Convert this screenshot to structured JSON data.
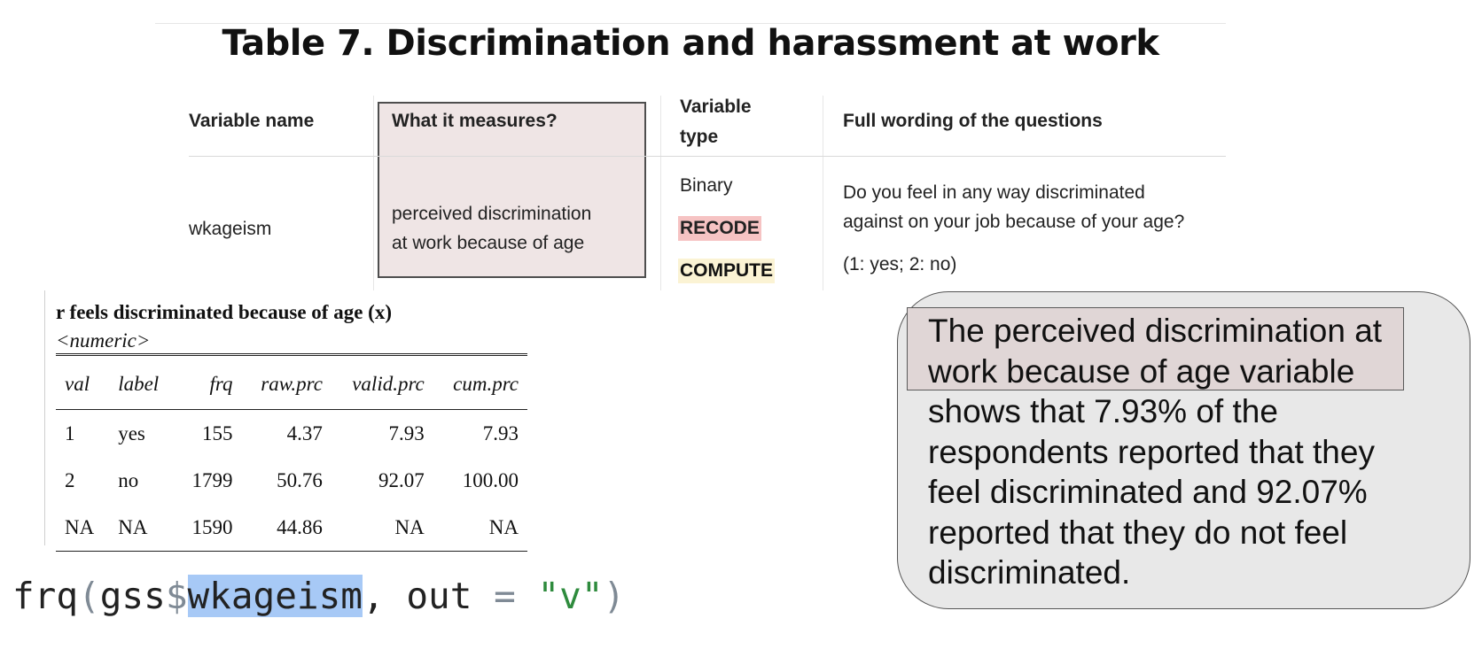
{
  "title": "Table 7. Discrimination and harassment at work",
  "table": {
    "headers": {
      "variable_name": "Variable name",
      "measures": "What it measures?",
      "type_line1": "Variable",
      "type_line2": "type",
      "wording": "Full wording of the questions"
    },
    "row": {
      "variable": "wkageism",
      "measure_line1": "perceived discrimination",
      "measure_line2": "at work because of age",
      "type": "Binary",
      "recode_tag": "RECODE",
      "compute_tag": "COMPUTE",
      "question_line1": "Do you feel in any way discriminated",
      "question_line2": "against on your job because of your age?",
      "coding": "(1: yes; 2: no)"
    }
  },
  "frq": {
    "title": "r feels discriminated because of age (x)",
    "type": "<numeric>",
    "columns": [
      "val",
      "label",
      "frq",
      "raw.prc",
      "valid.prc",
      "cum.prc"
    ],
    "rows": [
      [
        "1",
        "yes",
        "155",
        "4.37",
        "7.93",
        "7.93"
      ],
      [
        "2",
        "no",
        "1799",
        "50.76",
        "92.07",
        "100.00"
      ],
      [
        "NA",
        "NA",
        "1590",
        "44.86",
        "NA",
        "NA"
      ]
    ]
  },
  "code": {
    "func": "frq",
    "open_paren": "(",
    "object": "gss",
    "dollar": "$",
    "variable": "wkageism",
    "rest": ", out ",
    "eq": "=",
    "space": " ",
    "string": "\"v\"",
    "close_paren": ")"
  },
  "note": {
    "highlight": "The perceived discrimination at work because of age variable",
    "rest": "shows that 7.93% of the respondents reported that they feel discriminated and 92.07% reported that they do not feel discriminated."
  }
}
